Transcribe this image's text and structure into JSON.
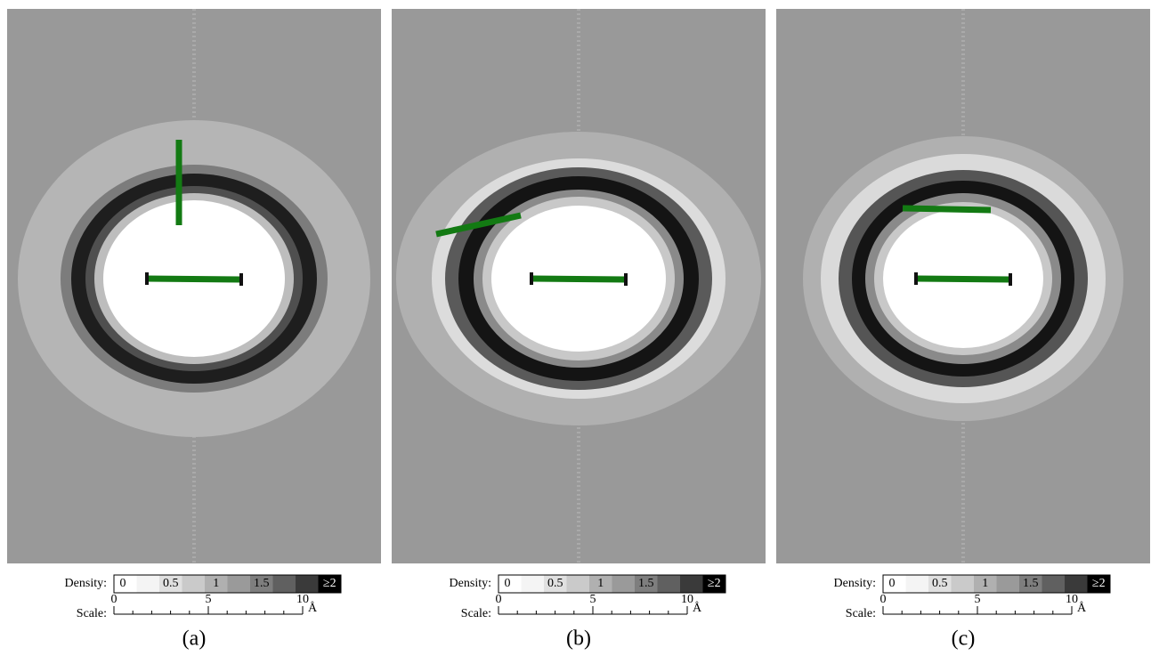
{
  "panels": [
    {
      "label": "(a)"
    },
    {
      "label": "(b)"
    },
    {
      "label": "(c)"
    }
  ],
  "legend": {
    "density_title": "Density:",
    "density_labels": [
      "0",
      "0.5",
      "1",
      "1.5",
      "≥2"
    ],
    "scale_title": "Scale:",
    "scale_labels": [
      "0",
      "5",
      "10"
    ],
    "scale_unit": "Å"
  }
}
